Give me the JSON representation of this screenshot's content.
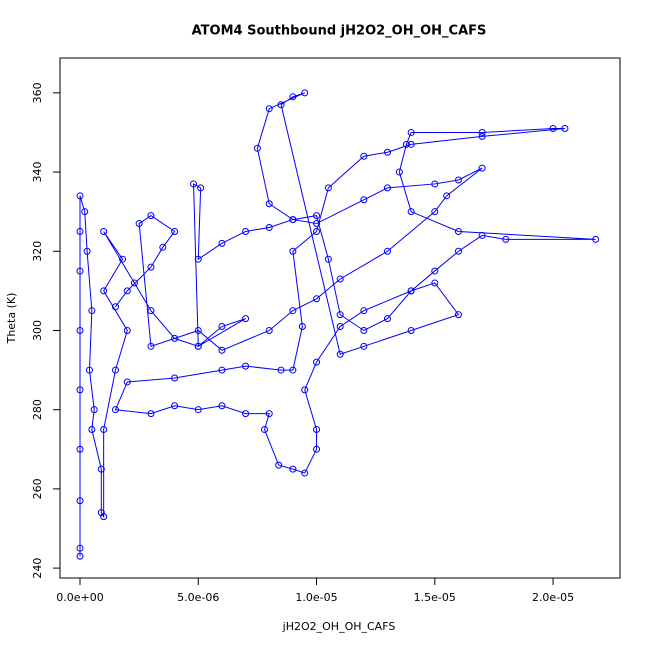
{
  "chart_data": {
    "type": "scatter",
    "lines": true,
    "title": "ATOM4 Southbound jH2O2_OH_OH_CAFS",
    "x_label": "jH2O2_OH_OH_CAFS",
    "y_label": "Theta (K)",
    "color": "#0000ff",
    "x": [
      0,
      0,
      0,
      0,
      0,
      0,
      0,
      0,
      0,
      2e-07,
      3e-07,
      5e-07,
      4e-07,
      6e-07,
      5e-07,
      9e-07,
      9e-07,
      1e-06,
      1e-06,
      1.5e-06,
      2e-06,
      1e-06,
      1.8e-06,
      1e-06,
      2.3e-06,
      3e-06,
      4e-06,
      5e-06,
      6e-06,
      7e-06,
      5e-06,
      4.8e-06,
      5.1e-06,
      5e-06,
      6e-06,
      7e-06,
      8e-06,
      9e-06,
      1e-05,
      1.05e-05,
      1.1e-05,
      1.2e-05,
      1.3e-05,
      1.4e-05,
      1.5e-05,
      1.6e-05,
      1.7e-05,
      1.8e-05,
      2.18e-05,
      1.6e-05,
      1.4e-05,
      1.35e-05,
      1.38e-05,
      1.4e-05,
      1.7e-05,
      2e-05,
      2.05e-05,
      1.7e-05,
      1.4e-05,
      1.3e-05,
      1.2e-05,
      1.05e-05,
      1e-05,
      9e-06,
      9.4e-06,
      9e-06,
      8.5e-06,
      7e-06,
      6e-06,
      4e-06,
      2e-06,
      1.5e-06,
      3e-06,
      4e-06,
      5e-06,
      6e-06,
      7e-06,
      8e-06,
      7.8e-06,
      8.4e-06,
      9e-06,
      9.5e-06,
      1e-05,
      1e-05,
      9.5e-06,
      1e-05,
      1.1e-05,
      1.2e-05,
      1.4e-05,
      1.5e-05,
      1.6e-05,
      1.4e-05,
      1.2e-05,
      1.1e-05,
      8.5e-06,
      9e-06,
      9.5e-06,
      8e-06,
      7.5e-06,
      8e-06,
      9e-06,
      1e-05,
      1.2e-05,
      1.3e-05,
      1.5e-05,
      1.6e-05,
      1.7e-05,
      1.55e-05,
      1.5e-05,
      1.3e-05,
      1.1e-05,
      1e-05,
      9e-06,
      8e-06,
      6e-06,
      5e-06,
      3e-06,
      2.5e-06,
      3e-06,
      4e-06,
      3.5e-06,
      3e-06,
      2e-06,
      1.5e-06
    ],
    "values": [
      243,
      245,
      257,
      270,
      285,
      300,
      315,
      325,
      334,
      330,
      320,
      305,
      290,
      280,
      275,
      265,
      254,
      253,
      275,
      290,
      300,
      310,
      318,
      325,
      312,
      305,
      298,
      296,
      301,
      303,
      296,
      337,
      336,
      318,
      322,
      325,
      326,
      328,
      329,
      318,
      304,
      300,
      303,
      310,
      315,
      320,
      324,
      323,
      323,
      325,
      330,
      340,
      347,
      350,
      350,
      351,
      351,
      349,
      347,
      345,
      344,
      336,
      325,
      320,
      301,
      290,
      290,
      291,
      290,
      288,
      287,
      280,
      279,
      281,
      280,
      281,
      279,
      279,
      275,
      266,
      265,
      264,
      270,
      275,
      285,
      292,
      301,
      305,
      310,
      312,
      304,
      300,
      296,
      294,
      357,
      359,
      360,
      356,
      346,
      332,
      328,
      327,
      333,
      336,
      337,
      338,
      341,
      334,
      330,
      320,
      313,
      308,
      305,
      300,
      295,
      300,
      296,
      327,
      329,
      325,
      321,
      316,
      310,
      306
    ],
    "xlim": [
      -8.46e-07,
      2.283e-05
    ],
    "ylim": [
      237.5,
      368.8
    ],
    "xticks": [
      {
        "value": 0,
        "label": "0.0e+00"
      },
      {
        "value": 5e-06,
        "label": "5.0e-06"
      },
      {
        "value": 1e-05,
        "label": "1.0e-05"
      },
      {
        "value": 1.5e-05,
        "label": "1.5e-05"
      },
      {
        "value": 2e-05,
        "label": "2.0e-05"
      }
    ],
    "yticks": [
      240,
      260,
      280,
      300,
      320,
      340,
      360
    ]
  }
}
